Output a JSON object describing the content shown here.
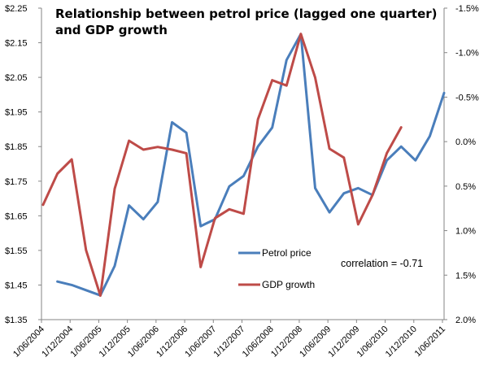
{
  "chart_data": {
    "type": "line",
    "title": [
      "Relationship between petrol price (lagged one quarter)",
      "and GDP growth"
    ],
    "annotation": "correlation = -0.71",
    "x_tick_labels": [
      "1/06/2004",
      "1/12/2004",
      "1/06/2005",
      "1/12/2005",
      "1/06/2006",
      "1/12/2006",
      "1/06/2007",
      "1/12/2007",
      "1/06/2008",
      "1/12/2008",
      "1/06/2009",
      "1/12/2009",
      "1/06/2010",
      "1/12/2010",
      "1/06/2011"
    ],
    "x_quarters_count": 29,
    "y_left": {
      "label": "",
      "range": [
        1.35,
        2.25
      ],
      "ticks": [
        "$1.35",
        "$1.45",
        "$1.55",
        "$1.65",
        "$1.75",
        "$1.85",
        "$1.95",
        "$2.05",
        "$2.15",
        "$2.25"
      ],
      "tick_values": [
        1.35,
        1.45,
        1.55,
        1.65,
        1.75,
        1.85,
        1.95,
        2.05,
        2.15,
        2.25
      ]
    },
    "y_right": {
      "label": "",
      "inverted": true,
      "range": [
        -1.5,
        2.0
      ],
      "ticks": [
        "-1.5%",
        "-1.0%",
        "-0.5%",
        "0.0%",
        "0.5%",
        "1.0%",
        "1.5%",
        "2.0%"
      ],
      "tick_values": [
        -1.5,
        -1.0,
        -0.5,
        0.0,
        0.5,
        1.0,
        1.5,
        2.0
      ]
    },
    "grid": false,
    "legend_position": "center",
    "series": [
      {
        "name": "Petrol price",
        "axis": "left",
        "color": "#4a7ebb",
        "start_index": 1,
        "values": [
          1.46,
          1.45,
          1.435,
          1.42,
          1.505,
          1.68,
          1.64,
          1.69,
          1.92,
          1.89,
          1.62,
          1.64,
          1.735,
          1.765,
          1.85,
          1.905,
          2.1,
          2.175,
          1.73,
          1.66,
          1.715,
          1.73,
          1.71,
          1.81,
          1.85,
          1.81,
          1.88,
          2.005
        ]
      },
      {
        "name": "GDP growth",
        "axis": "right",
        "color": "#be4b48",
        "start_index": 0,
        "values": [
          0.71,
          0.36,
          0.2,
          1.22,
          1.73,
          0.53,
          -0.01,
          0.09,
          0.06,
          0.09,
          0.13,
          1.41,
          0.86,
          0.76,
          0.81,
          -0.25,
          -0.69,
          -0.63,
          -1.21,
          -0.72,
          0.08,
          0.18,
          0.93,
          0.6,
          0.13,
          -0.16
        ]
      }
    ]
  }
}
